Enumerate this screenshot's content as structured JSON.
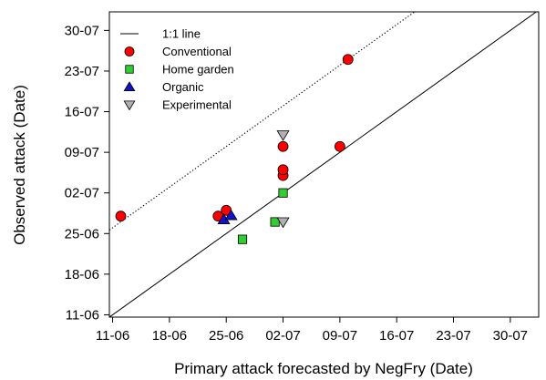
{
  "chart_data": {
    "type": "scatter",
    "xlabel": "Primary attack forecasted by NegFry (Date)",
    "ylabel": "Observed attack (Date)",
    "ticks": {
      "x": [
        {
          "value": 0,
          "label": "11-06"
        },
        {
          "value": 7,
          "label": "18-06"
        },
        {
          "value": 14,
          "label": "25-06"
        },
        {
          "value": 21,
          "label": "02-07"
        },
        {
          "value": 28,
          "label": "09-07"
        },
        {
          "value": 35,
          "label": "16-07"
        },
        {
          "value": 42,
          "label": "23-07"
        },
        {
          "value": 49,
          "label": "30-07"
        }
      ],
      "y": [
        {
          "value": 0,
          "label": "11-06"
        },
        {
          "value": 7,
          "label": "18-06"
        },
        {
          "value": 14,
          "label": "25-06"
        },
        {
          "value": 21,
          "label": "02-07"
        },
        {
          "value": 28,
          "label": "09-07"
        },
        {
          "value": 35,
          "label": "16-07"
        },
        {
          "value": 42,
          "label": "23-07"
        },
        {
          "value": 49,
          "label": "30-07"
        }
      ]
    },
    "x_range": [
      -0.4,
      52.5
    ],
    "y_range": [
      -0.4,
      52.2
    ],
    "grid": false,
    "legend_position": "top-left",
    "reference_lines": [
      {
        "name": "1:1 line",
        "slope": 1,
        "intercept": 0,
        "style": "solid"
      },
      {
        "slope": 1,
        "intercept": 15,
        "style": "dotted"
      }
    ],
    "series": [
      {
        "name": "Conventional",
        "marker": "circle",
        "color": "#ff0000",
        "points": [
          [
            1,
            17
          ],
          [
            13,
            17
          ],
          [
            14,
            18
          ],
          [
            21,
            24
          ],
          [
            21,
            25
          ],
          [
            21,
            29
          ],
          [
            28,
            29
          ],
          [
            29,
            44
          ]
        ]
      },
      {
        "name": "Home garden",
        "marker": "square",
        "color": "#33cc33",
        "points": [
          [
            16,
            13
          ],
          [
            20,
            16
          ],
          [
            21,
            21
          ]
        ]
      },
      {
        "name": "Organic",
        "marker": "triangle-up",
        "color": "#1111cc",
        "points": [
          [
            13.7,
            16.4
          ],
          [
            14.6,
            17.1
          ]
        ]
      },
      {
        "name": "Experimental",
        "marker": "triangle-down",
        "color": "#b0b0b0",
        "points": [
          [
            21,
            16
          ],
          [
            21,
            31
          ]
        ]
      }
    ],
    "legend": [
      {
        "label": "1:1 line",
        "symbol": "line"
      },
      {
        "label": "Conventional",
        "symbol": "circle",
        "color": "#ff0000"
      },
      {
        "label": "Home garden",
        "symbol": "square",
        "color": "#33cc33"
      },
      {
        "label": "Organic",
        "symbol": "triangle-up",
        "color": "#1111cc"
      },
      {
        "label": "Experimental",
        "symbol": "triangle-down",
        "color": "#b0b0b0"
      }
    ]
  }
}
